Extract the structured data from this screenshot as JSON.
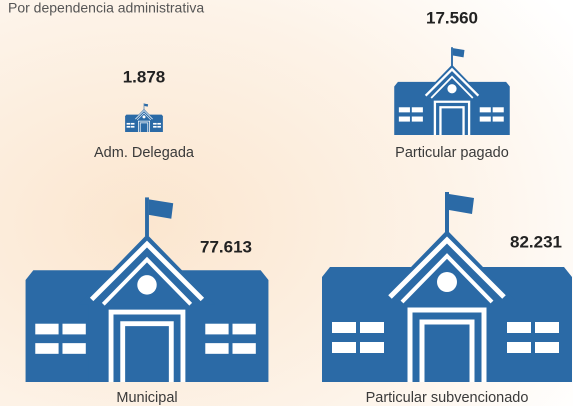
{
  "chart_data": {
    "type": "pictogram",
    "subtitle": "Por dependencia administrativa",
    "categories": [
      "Adm. Delegada",
      "Particular pagado",
      "Municipal",
      "Particular subvencionado"
    ],
    "values": [
      1878,
      17560,
      77613,
      82231
    ],
    "value_labels": [
      "1.878",
      "17.560",
      "77.613",
      "82.231"
    ],
    "color": "#2b6aa6"
  }
}
